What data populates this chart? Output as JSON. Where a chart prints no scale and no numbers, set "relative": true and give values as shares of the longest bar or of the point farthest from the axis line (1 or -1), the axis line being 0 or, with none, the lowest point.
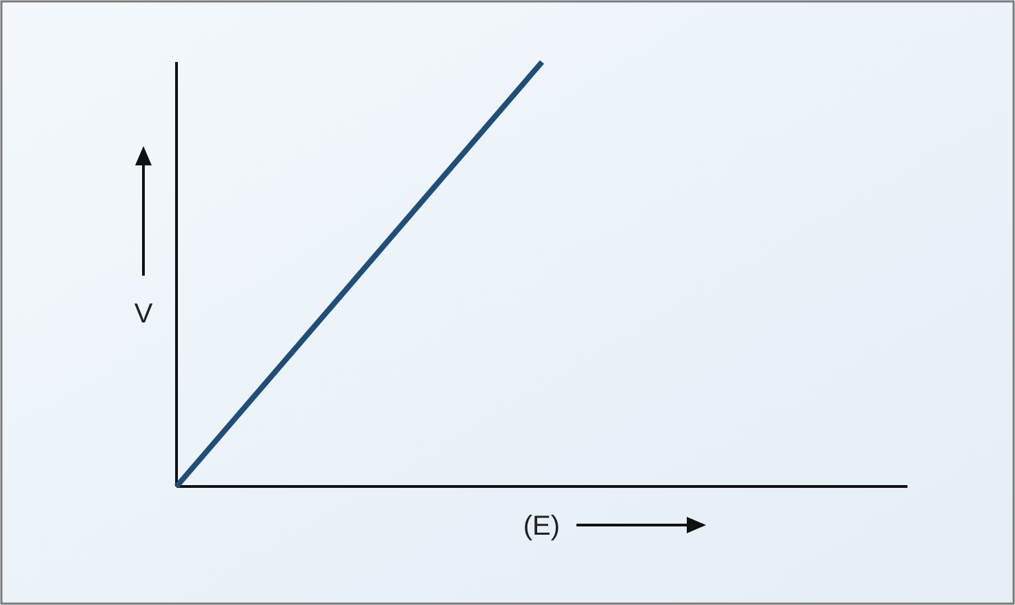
{
  "chart_data": {
    "type": "line",
    "relative": true,
    "xlabel": "(E)",
    "ylabel": "V",
    "categories": [
      null,
      null,
      null
    ],
    "series": [
      {
        "color": "#1f4e79",
        "values": [
          0,
          1,
          null
        ]
      }
    ]
  }
}
